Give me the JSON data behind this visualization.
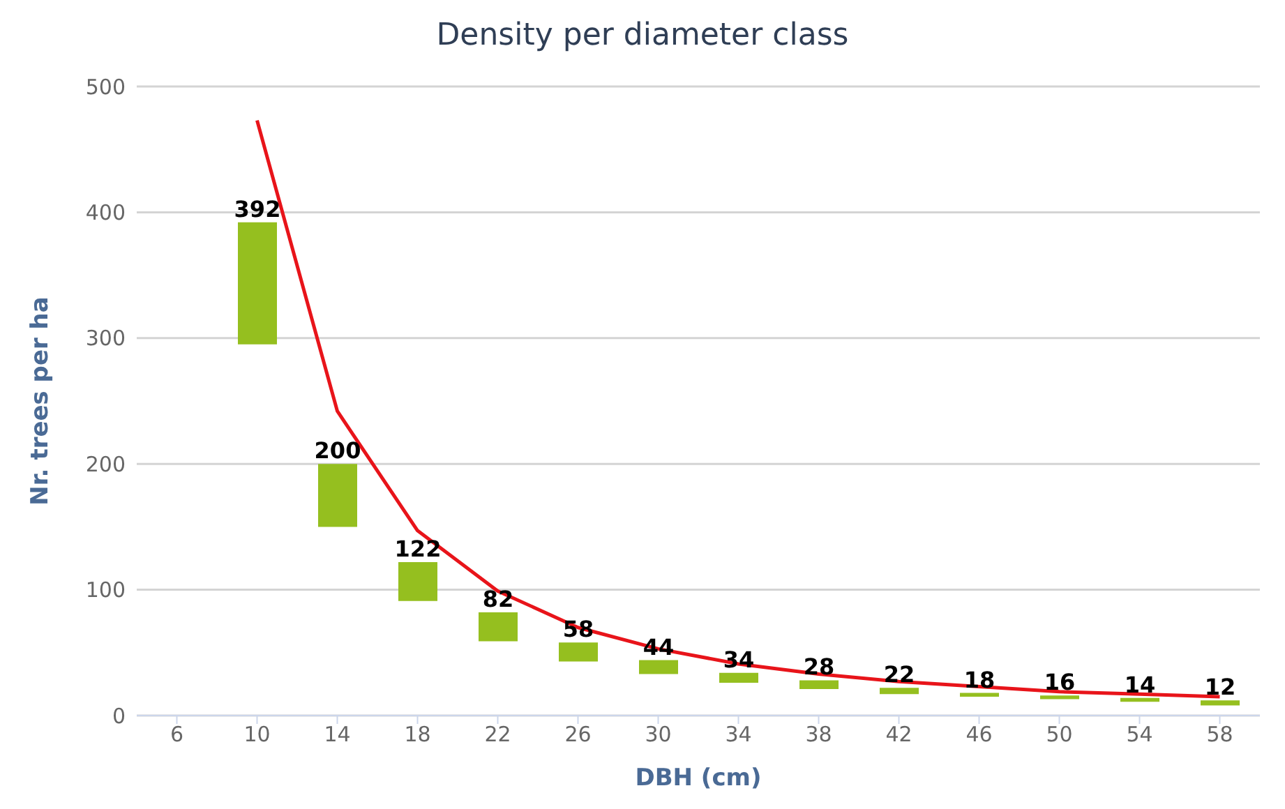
{
  "chart_data": {
    "type": "bar",
    "title": "Density per diameter class",
    "xlabel": "DBH (cm)",
    "ylabel": "Nr. trees per ha",
    "categories": [
      "6",
      "10",
      "14",
      "18",
      "22",
      "26",
      "30",
      "34",
      "38",
      "42",
      "46",
      "50",
      "54",
      "58"
    ],
    "series": [
      {
        "color": "#95bf1f",
        "base": [
          null,
          295,
          150,
          91,
          59,
          43,
          33,
          26,
          21,
          17,
          15,
          13,
          11,
          8
        ],
        "values": [
          null,
          97,
          50,
          31,
          23,
          15,
          11,
          8,
          7,
          5,
          3,
          3,
          3,
          4
        ],
        "value_labels": [
          null,
          "392",
          "200",
          "122",
          "82",
          "58",
          "44",
          "34",
          "28",
          "22",
          "18",
          "16",
          "14",
          "12"
        ]
      },
      {
        "type": "line",
        "color": "#e8141a",
        "marker": "none",
        "values": [
          null,
          473,
          242,
          147,
          99,
          70,
          53,
          41,
          33,
          27,
          23,
          19,
          17,
          15
        ]
      }
    ],
    "ylim": [
      0,
      500
    ],
    "yticks": [
      0,
      100,
      200,
      300,
      400,
      500
    ],
    "grid": "y",
    "legend": false
  }
}
